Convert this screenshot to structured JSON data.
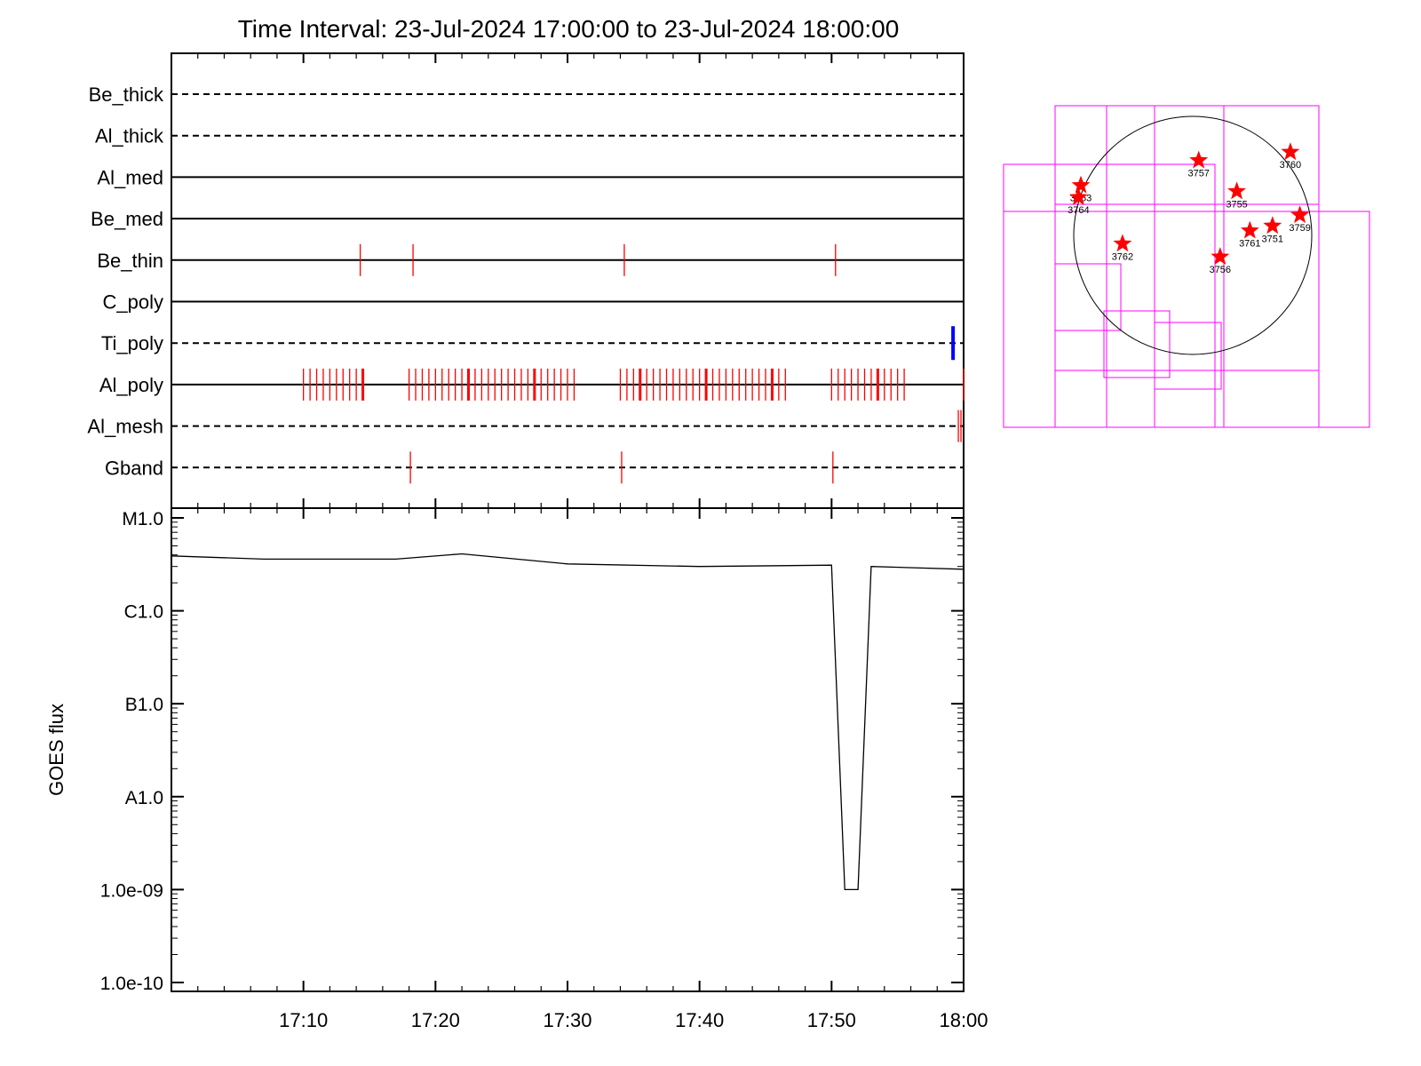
{
  "title": "Time Interval: 23-Jul-2024 17:00:00 to 23-Jul-2024 18:00:00",
  "colors": {
    "axes": "#000000",
    "event_marks": "#ff0000",
    "ti_poly_mark": "#0000ff",
    "fov_boxes": "#ff00ff",
    "goes_curve": "#000000",
    "stars": "#ff0000"
  },
  "chart_data": [
    {
      "type": "line",
      "panel": "channel-timeline",
      "x_range_minutes": [
        0,
        60
      ],
      "channels": [
        {
          "name": "Be_thick",
          "line": "dashed",
          "events": []
        },
        {
          "name": "Al_thick",
          "line": "dashed",
          "events": []
        },
        {
          "name": "Al_med",
          "line": "solid",
          "events": []
        },
        {
          "name": "Be_med",
          "line": "solid",
          "events": []
        },
        {
          "name": "Be_thin",
          "line": "solid",
          "events": [
            14.3,
            18.3,
            34.3,
            50.3
          ]
        },
        {
          "name": "C_poly",
          "line": "solid",
          "events": []
        },
        {
          "name": "Ti_poly",
          "line": "dashed",
          "events": [
            59.2
          ],
          "event_color": "blue"
        },
        {
          "name": "Al_poly",
          "line": "solid",
          "events": [
            10.0,
            10.5,
            11.0,
            11.5,
            12.0,
            12.5,
            13.0,
            13.5,
            14.0,
            14.5,
            18.0,
            18.5,
            19.0,
            19.5,
            20.0,
            20.5,
            21.0,
            21.5,
            22.0,
            22.5,
            23.0,
            23.5,
            24.0,
            24.5,
            25.0,
            25.5,
            26.0,
            26.5,
            27.0,
            27.5,
            28.0,
            28.5,
            29.0,
            29.5,
            30.0,
            30.5,
            34.0,
            34.5,
            35.0,
            35.5,
            36.0,
            36.5,
            37.0,
            37.5,
            38.0,
            38.5,
            39.0,
            39.5,
            40.0,
            40.5,
            41.0,
            41.5,
            42.0,
            42.5,
            43.0,
            43.5,
            44.0,
            44.5,
            45.0,
            45.5,
            46.0,
            46.5,
            50.0,
            50.5,
            51.0,
            51.5,
            52.0,
            52.5,
            53.0,
            53.5,
            54.0,
            54.5,
            55.0,
            55.5,
            60.0
          ]
        },
        {
          "name": "Al_mesh",
          "line": "dashed",
          "events": [
            59.6,
            59.8
          ]
        },
        {
          "name": "Gband",
          "line": "dashed",
          "events": [
            18.1,
            34.1,
            50.1
          ]
        }
      ]
    },
    {
      "type": "line",
      "panel": "goes",
      "ylabel": "GOES flux",
      "y_scale": "log",
      "ylim": [
        1e-10,
        1e-05
      ],
      "y_ticks": [
        {
          "value": 1e-05,
          "label": "M1.0"
        },
        {
          "value": 1e-06,
          "label": "C1.0"
        },
        {
          "value": 1e-07,
          "label": "B1.0"
        },
        {
          "value": 1e-08,
          "label": "A1.0"
        },
        {
          "value": 1e-09,
          "label": "1.0e-09"
        },
        {
          "value": 1e-10,
          "label": "1.0e-10"
        }
      ],
      "x_ticks": [
        "17:10",
        "17:20",
        "17:30",
        "17:40",
        "17:50",
        "18:00"
      ],
      "x_tick_minutes": [
        10,
        20,
        30,
        40,
        50,
        60
      ],
      "x_range_minutes": [
        0,
        60
      ],
      "series": [
        {
          "x": [
            0,
            7,
            17,
            22,
            30,
            40,
            50,
            51,
            52,
            53,
            60
          ],
          "y": [
            3.9e-06,
            3.6e-06,
            3.6e-06,
            4.1e-06,
            3.2e-06,
            3e-06,
            3.1e-06,
            1e-09,
            1e-09,
            3e-06,
            2.8e-06
          ]
        }
      ]
    }
  ],
  "solar_map": {
    "active_regions": [
      {
        "label": "3757",
        "lon": 0.05,
        "lat": 0.63
      },
      {
        "label": "3760",
        "lon": 0.82,
        "lat": 0.7
      },
      {
        "label": "3763",
        "lon": -0.94,
        "lat": 0.42
      },
      {
        "label": "3764",
        "lon": -0.96,
        "lat": 0.32
      },
      {
        "label": "3755",
        "lon": 0.37,
        "lat": 0.37
      },
      {
        "label": "3759",
        "lon": 0.9,
        "lat": 0.17
      },
      {
        "label": "3751",
        "lon": 0.67,
        "lat": 0.08
      },
      {
        "label": "3761",
        "lon": 0.48,
        "lat": 0.04
      },
      {
        "label": "3762",
        "lon": -0.59,
        "lat": -0.07
      },
      {
        "label": "3756",
        "lon": 0.23,
        "lat": -0.18
      }
    ]
  }
}
